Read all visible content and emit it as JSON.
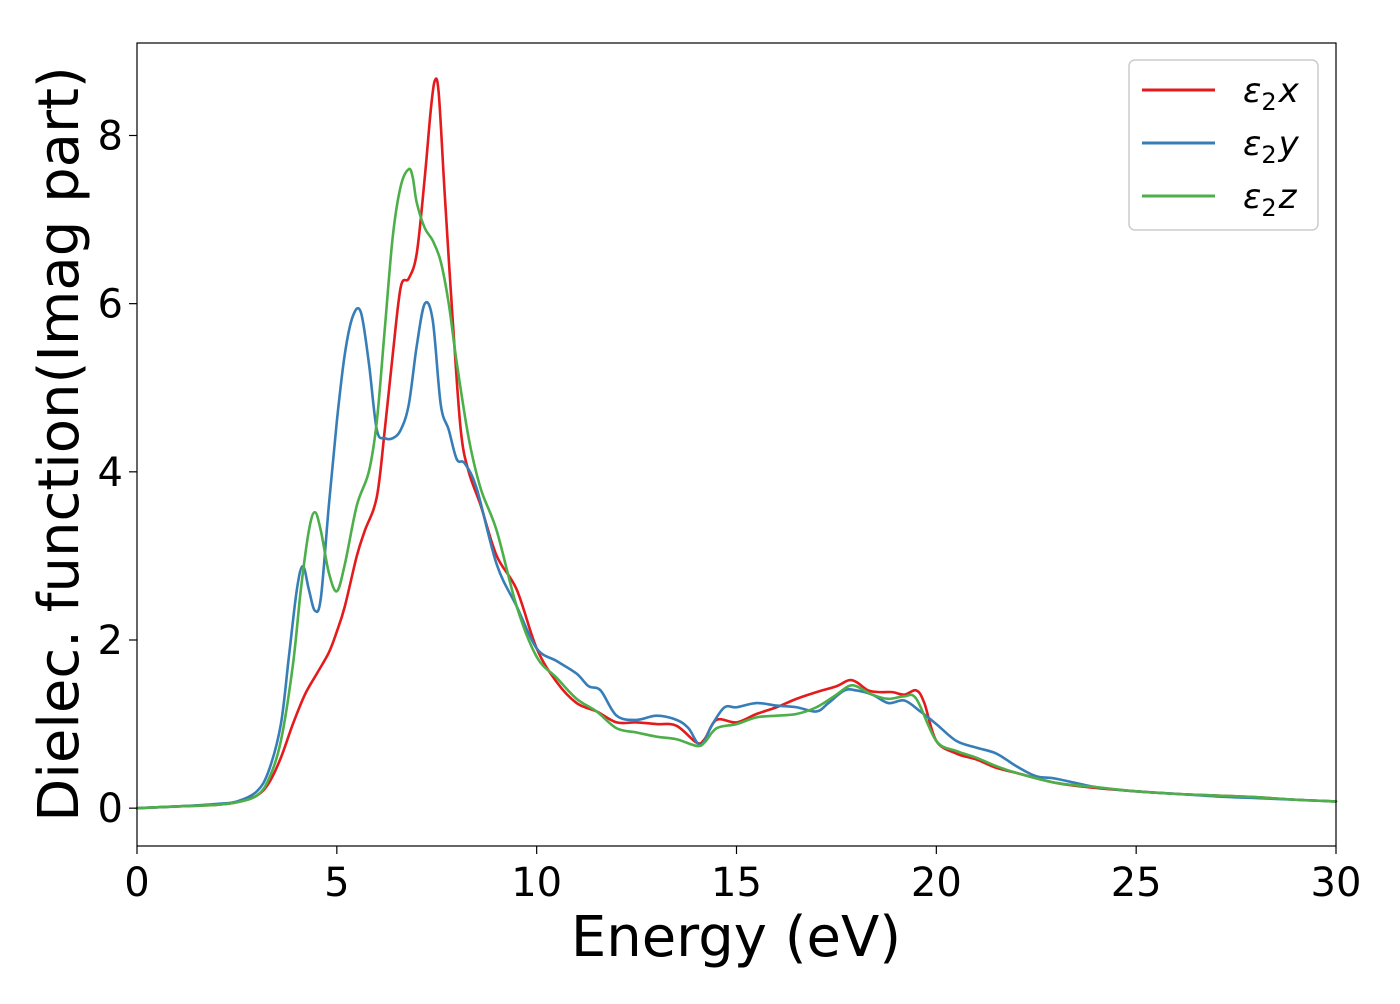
{
  "chart_data": {
    "type": "line",
    "title": "",
    "xlabel": "Energy (eV)",
    "ylabel": "Dielec. function(Imag part)",
    "xlim": [
      0,
      30
    ],
    "ylim": [
      -0.45,
      9.1
    ],
    "xticks": [
      0,
      5,
      10,
      15,
      20,
      25,
      30
    ],
    "yticks": [
      0,
      2,
      4,
      6,
      8
    ],
    "grid": false,
    "legend_position": "top-right",
    "series": [
      {
        "name": "ε₂x",
        "name_parts": {
          "base": "ε",
          "sub": "2",
          "suffix": "x"
        },
        "color": "#e41a1c",
        "x": [
          0,
          1,
          2,
          2.5,
          3,
          3.3,
          3.6,
          3.9,
          4.2,
          4.5,
          4.8,
          5.0,
          5.2,
          5.5,
          5.7,
          6.0,
          6.2,
          6.4,
          6.6,
          6.8,
          7.0,
          7.2,
          7.35,
          7.45,
          7.55,
          7.7,
          7.9,
          8.1,
          8.3,
          8.6,
          9.0,
          9.5,
          10.0,
          10.5,
          11.0,
          11.5,
          12.0,
          12.5,
          13.0,
          13.5,
          14.0,
          14.2,
          14.5,
          15.0,
          15.5,
          16.0,
          16.5,
          17.0,
          17.5,
          17.8,
          18.0,
          18.3,
          18.6,
          18.9,
          19.2,
          19.5,
          19.7,
          20.0,
          20.5,
          21.0,
          21.5,
          22.0,
          23.0,
          24.0,
          25.0,
          26.0,
          27.0,
          28.0,
          29.0,
          30.0
        ],
        "values": [
          0.0,
          0.02,
          0.04,
          0.07,
          0.15,
          0.3,
          0.6,
          1.0,
          1.35,
          1.6,
          1.85,
          2.1,
          2.4,
          3.0,
          3.3,
          3.7,
          4.5,
          5.4,
          6.2,
          6.3,
          6.6,
          7.5,
          8.3,
          8.65,
          8.5,
          7.3,
          5.8,
          4.5,
          4.0,
          3.6,
          3.0,
          2.6,
          1.9,
          1.5,
          1.25,
          1.15,
          1.02,
          1.02,
          1.0,
          0.98,
          0.78,
          0.82,
          1.05,
          1.02,
          1.12,
          1.2,
          1.3,
          1.38,
          1.45,
          1.52,
          1.5,
          1.4,
          1.38,
          1.38,
          1.35,
          1.4,
          1.25,
          0.8,
          0.65,
          0.58,
          0.48,
          0.42,
          0.3,
          0.24,
          0.2,
          0.17,
          0.15,
          0.13,
          0.1,
          0.08
        ]
      },
      {
        "name": "ε₂y",
        "name_parts": {
          "base": "ε",
          "sub": "2",
          "suffix": "y"
        },
        "color": "#377eb8",
        "x": [
          0,
          1,
          2,
          2.5,
          3,
          3.3,
          3.6,
          3.8,
          4.0,
          4.15,
          4.3,
          4.45,
          4.6,
          4.8,
          5.0,
          5.2,
          5.4,
          5.6,
          5.8,
          6.0,
          6.2,
          6.4,
          6.6,
          6.8,
          7.0,
          7.2,
          7.4,
          7.6,
          7.8,
          8.0,
          8.2,
          8.5,
          9.0,
          9.5,
          10.0,
          10.5,
          11.0,
          11.3,
          11.6,
          12.0,
          12.5,
          13.0,
          13.5,
          13.8,
          14.1,
          14.4,
          14.7,
          15.0,
          15.5,
          16.0,
          16.5,
          17.0,
          17.3,
          17.7,
          18.0,
          18.4,
          18.8,
          19.2,
          19.6,
          20.0,
          20.5,
          21.0,
          21.5,
          22.0,
          22.5,
          23.0,
          24.0,
          25.0,
          26.0,
          27.0,
          28.0,
          29.0,
          30.0
        ],
        "values": [
          0.0,
          0.02,
          0.05,
          0.08,
          0.2,
          0.45,
          1.0,
          1.8,
          2.6,
          2.88,
          2.6,
          2.35,
          2.5,
          3.6,
          4.6,
          5.4,
          5.85,
          5.9,
          5.3,
          4.5,
          4.4,
          4.4,
          4.5,
          4.8,
          5.5,
          6.0,
          5.8,
          4.8,
          4.5,
          4.15,
          4.1,
          3.8,
          2.9,
          2.4,
          1.9,
          1.75,
          1.6,
          1.45,
          1.4,
          1.1,
          1.05,
          1.1,
          1.05,
          0.95,
          0.75,
          1.0,
          1.2,
          1.2,
          1.25,
          1.22,
          1.2,
          1.15,
          1.25,
          1.4,
          1.4,
          1.35,
          1.25,
          1.28,
          1.15,
          1.0,
          0.8,
          0.72,
          0.65,
          0.5,
          0.38,
          0.35,
          0.25,
          0.2,
          0.17,
          0.14,
          0.12,
          0.1,
          0.08
        ]
      },
      {
        "name": "ε₂z",
        "name_parts": {
          "base": "ε",
          "sub": "2",
          "suffix": "z"
        },
        "color": "#4daf4a",
        "x": [
          0,
          1,
          2,
          2.5,
          3,
          3.3,
          3.6,
          3.9,
          4.1,
          4.3,
          4.45,
          4.6,
          4.8,
          5.0,
          5.2,
          5.5,
          5.8,
          6.0,
          6.2,
          6.4,
          6.6,
          6.8,
          6.9,
          7.0,
          7.2,
          7.4,
          7.6,
          7.8,
          8.0,
          8.3,
          8.6,
          9.0,
          9.5,
          10.0,
          10.5,
          11.0,
          11.5,
          12.0,
          12.5,
          13.0,
          13.5,
          14.0,
          14.2,
          14.5,
          15.0,
          15.5,
          16.0,
          16.5,
          17.0,
          17.5,
          17.8,
          18.0,
          18.4,
          18.8,
          19.2,
          19.5,
          20.0,
          20.5,
          21.0,
          21.5,
          22.0,
          23.0,
          24.0,
          25.0,
          26.0,
          27.0,
          28.0,
          29.0,
          30.0
        ],
        "values": [
          0.0,
          0.02,
          0.04,
          0.07,
          0.15,
          0.35,
          0.8,
          1.7,
          2.6,
          3.3,
          3.52,
          3.3,
          2.8,
          2.58,
          2.9,
          3.6,
          4.0,
          4.6,
          5.7,
          6.8,
          7.4,
          7.6,
          7.5,
          7.2,
          6.9,
          6.75,
          6.5,
          6.0,
          5.3,
          4.4,
          3.8,
          3.3,
          2.4,
          1.8,
          1.55,
          1.3,
          1.15,
          0.95,
          0.9,
          0.85,
          0.82,
          0.74,
          0.78,
          0.95,
          1.0,
          1.08,
          1.1,
          1.12,
          1.2,
          1.35,
          1.45,
          1.45,
          1.35,
          1.3,
          1.33,
          1.3,
          0.8,
          0.68,
          0.6,
          0.5,
          0.42,
          0.3,
          0.25,
          0.2,
          0.17,
          0.15,
          0.13,
          0.1,
          0.08
        ]
      }
    ]
  }
}
